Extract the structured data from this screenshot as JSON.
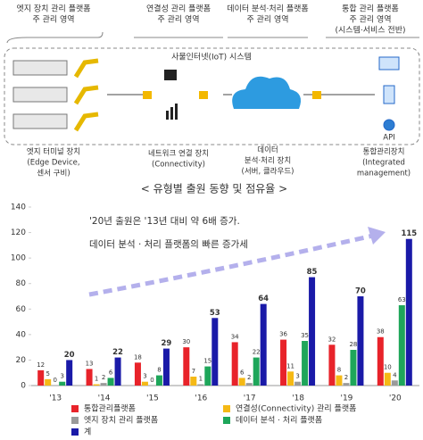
{
  "diagram": {
    "zones": [
      [
        "엣지 장치 관리 플랫폼",
        "주 관리 영역"
      ],
      [
        "연결성 관리 플랫폼",
        "주 관리 영역"
      ],
      [
        "데이터 분석·처리 플랫폼",
        "주 관리 영역"
      ],
      [
        "통합 관리 플랫폼",
        "주 관리 영역",
        "(시스템·서비스 전반)"
      ]
    ],
    "system": "사물인터넷(IoT) 시스템",
    "api": "API",
    "devices": [
      [
        "엣지 터미널 장치",
        "(Edge Device,",
        "센서 구비)"
      ],
      [
        "네트워크 연결 장치",
        "(Connectivity)"
      ],
      [
        "데이터",
        "분석·처리 장치",
        "(서버, 클라우드)"
      ],
      [
        "통합관리장치",
        "(Integrated",
        "management)"
      ]
    ]
  },
  "chart_data": {
    "type": "bar",
    "title": "< 유형별 출원 동향 및 점유율 >",
    "annotations": [
      "'20년 출원은 '13년 대비 약 6배 증가.",
      "데이터 분석 · 처리 플랫폼의 빠른 증가세"
    ],
    "categories": [
      "'13",
      "'14",
      "'15",
      "'16",
      "'17",
      "'18",
      "'19",
      "'20"
    ],
    "series": [
      {
        "name": "통합관리플랫폼",
        "color": "#e8232a",
        "values": [
          12,
          13,
          18,
          30,
          34,
          36,
          32,
          38
        ]
      },
      {
        "name": "연결성(Connectivity) 관리 플랫폼",
        "color": "#f5b915",
        "values": [
          5,
          1,
          3,
          7,
          6,
          11,
          8,
          10
        ]
      },
      {
        "name": "엣지 장치 관리 플랫폼",
        "color": "#9a9a9a",
        "values": [
          0,
          2,
          0,
          1,
          2,
          3,
          2,
          4
        ]
      },
      {
        "name": "데이터 분석 · 처리 플랫폼",
        "color": "#1ea65a",
        "values": [
          3,
          6,
          8,
          15,
          22,
          35,
          28,
          63
        ]
      },
      {
        "name": "계",
        "color": "#1a1aa8",
        "values": [
          20,
          22,
          29,
          53,
          64,
          85,
          70,
          115
        ]
      }
    ],
    "ylim": [
      0,
      140
    ],
    "yticks": [
      0,
      20,
      40,
      60,
      80,
      100,
      120,
      140
    ],
    "grid": false
  }
}
